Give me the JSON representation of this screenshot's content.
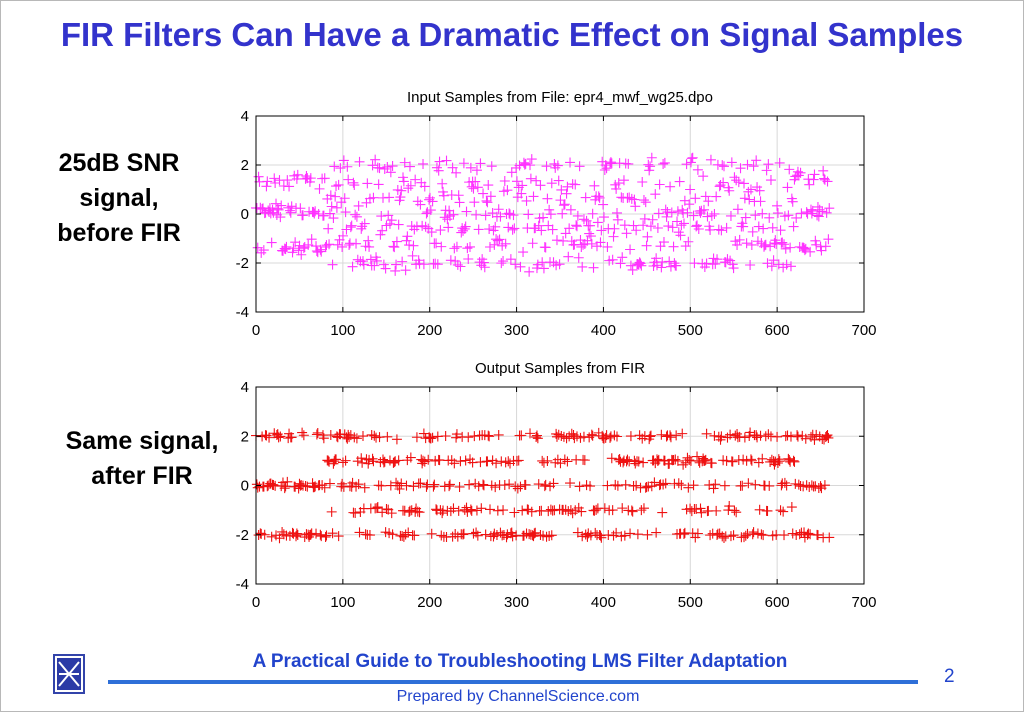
{
  "slide": {
    "title": "FIR Filters Can Have a Dramatic Effect on Signal Samples",
    "label_top": [
      "25dB SNR",
      "signal,",
      "before FIR"
    ],
    "label_bottom": [
      "Same signal,",
      "after FIR"
    ]
  },
  "footer": {
    "title": "A Practical Guide to Troubleshooting LMS Filter Adaptation",
    "prepared_by": "Prepared by ChannelScience.com",
    "page_number": "2",
    "logo_icon": "channelscience-logo-icon"
  },
  "chart_data": [
    {
      "type": "scatter",
      "title": "Input Samples from File: epr4_mwf_wg25.dpo",
      "xlim": [
        0,
        700
      ],
      "ylim": [
        -4,
        4
      ],
      "xticks": [
        0,
        100,
        200,
        300,
        400,
        500,
        600,
        700
      ],
      "yticks": [
        -4,
        -2,
        0,
        2,
        4
      ],
      "xtick_labels": [
        "0",
        "100",
        "200",
        "300",
        "400",
        "500",
        "600",
        "700"
      ],
      "ytick_labels": [
        "-4",
        "-2",
        "0",
        "2",
        "4"
      ],
      "grid": true,
      "marker": "+",
      "color": "#ff33ff",
      "n_samples": 660,
      "series": [
        {
          "x_range": [
            0,
            660
          ],
          "levels_start": [
            1.35,
            0.1,
            -1.35
          ],
          "levels_mid": [
            2.0,
            1.2,
            0.6,
            0.0,
            -0.6,
            -1.2,
            -2.0
          ],
          "levels_end": [
            1.45,
            0.1,
            -1.3
          ],
          "transitions": [
            80,
            620
          ],
          "noise": 0.28
        }
      ]
    },
    {
      "type": "scatter",
      "title": "Output Samples from FIR",
      "xlim": [
        0,
        700
      ],
      "ylim": [
        -4,
        4
      ],
      "xticks": [
        0,
        100,
        200,
        300,
        400,
        500,
        600,
        700
      ],
      "yticks": [
        -4,
        -2,
        0,
        2,
        4
      ],
      "xtick_labels": [
        "0",
        "100",
        "200",
        "300",
        "400",
        "500",
        "600",
        "700"
      ],
      "ytick_labels": [
        "-4",
        "-2",
        "0",
        "2",
        "4"
      ],
      "grid": true,
      "marker": "+",
      "color": "#ee1111",
      "n_samples": 660,
      "series": [
        {
          "x_range": [
            0,
            660
          ],
          "levels_start": [
            2.0,
            0.0,
            -2.0
          ],
          "levels_mid": [
            2.0,
            1.0,
            0.0,
            -1.0,
            -2.0
          ],
          "levels_end": [
            2.0,
            0.0,
            -2.0
          ],
          "transitions": [
            80,
            620
          ],
          "noise": 0.12
        }
      ]
    }
  ]
}
